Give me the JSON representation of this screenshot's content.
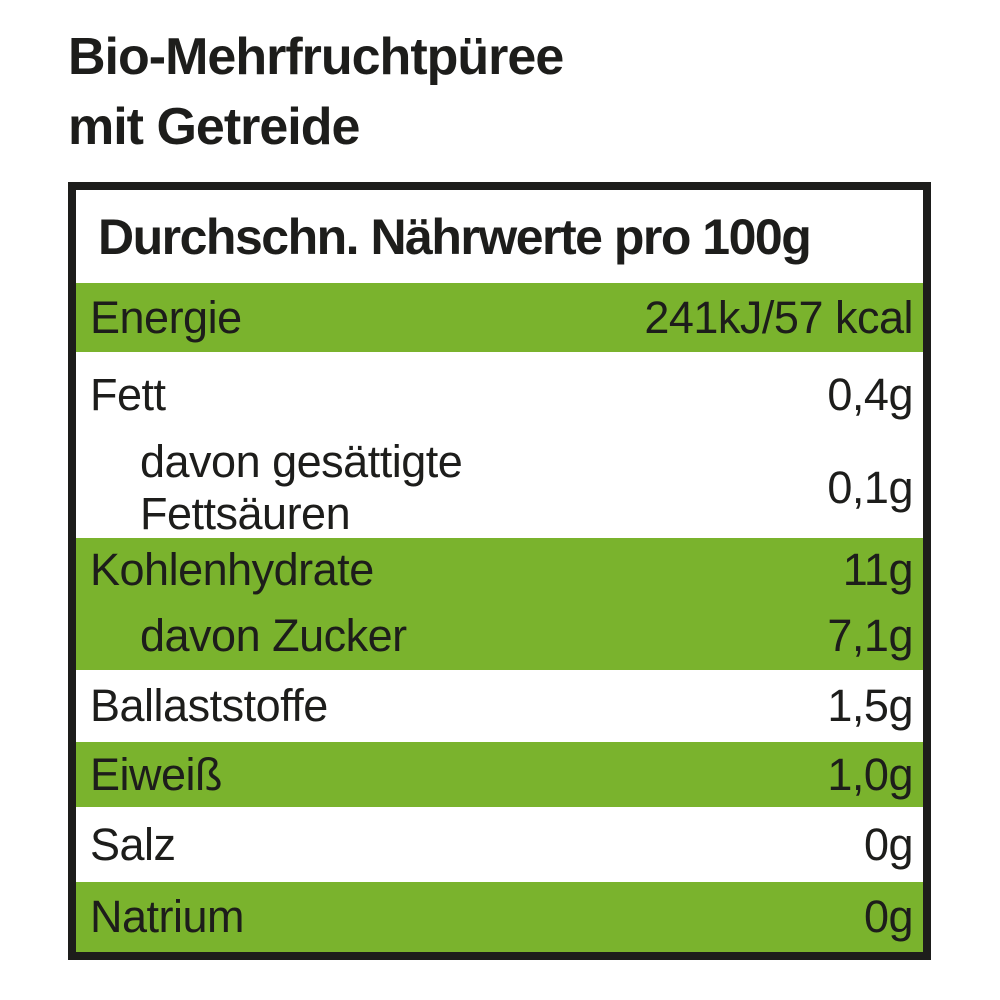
{
  "colors": {
    "green": "#7ab32d",
    "ink": "#1d1d1b",
    "background": "#ffffff"
  },
  "title": {
    "line1": "Bio-Mehrfruchtpüree",
    "line2": "mit Getreide"
  },
  "table": {
    "header": "Durchschn. Nährwerte pro 100g",
    "rows": [
      {
        "label": "Energie",
        "value": "241kJ/57 kcal",
        "green": true,
        "indent": false
      },
      {
        "label": "Fett",
        "value": "0,4g",
        "green": false,
        "indent": false
      },
      {
        "label": "davon gesättigte Fettsäuren",
        "label_lines": [
          "davon gesättigte",
          "Fettsäuren"
        ],
        "value": "0,1g",
        "green": false,
        "indent": true
      },
      {
        "label": "Kohlenhydrate",
        "value": "11g",
        "green": true,
        "indent": false
      },
      {
        "label": "davon Zucker",
        "value": "7,1g",
        "green": true,
        "indent": true
      },
      {
        "label": "Ballaststoffe",
        "value": "1,5g",
        "green": false,
        "indent": false
      },
      {
        "label": "Eiweiß",
        "value": "1,0g",
        "green": true,
        "indent": false
      },
      {
        "label": "Salz",
        "value": "0g",
        "green": false,
        "indent": false
      },
      {
        "label": "Natrium",
        "value": "0g",
        "green": true,
        "indent": false
      }
    ]
  }
}
